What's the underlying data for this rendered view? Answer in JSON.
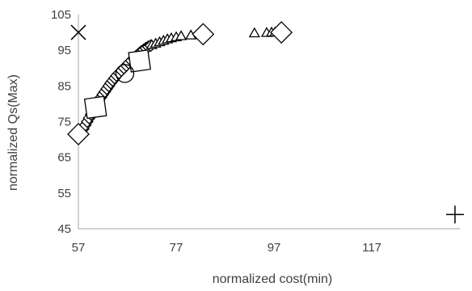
{
  "chart_data": {
    "type": "scatter",
    "xlabel": "normalized cost(min)",
    "ylabel": "normalized Qs(Max)",
    "xlim": [
      57,
      135
    ],
    "ylim": [
      45,
      105
    ],
    "x_ticks": [
      57,
      77,
      97,
      117
    ],
    "y_ticks": [
      45,
      55,
      65,
      75,
      85,
      95,
      105
    ],
    "grid": false,
    "legend": "none",
    "series": [
      {
        "marker": "diamond-small",
        "color": "#000000",
        "points": [
          [
            57.6,
            72
          ],
          [
            58,
            73
          ],
          [
            58.4,
            74
          ],
          [
            58.8,
            75
          ],
          [
            59.2,
            76
          ],
          [
            59.6,
            77
          ],
          [
            60,
            78
          ],
          [
            60.4,
            79
          ],
          [
            60.8,
            80
          ],
          [
            61.2,
            81
          ],
          [
            61.6,
            81.8
          ],
          [
            62,
            82.6
          ],
          [
            62.4,
            83.4
          ],
          [
            62.8,
            84.2
          ],
          [
            63.2,
            85
          ],
          [
            63.6,
            85.8
          ],
          [
            64,
            86.5
          ],
          [
            64.4,
            87.2
          ],
          [
            64.8,
            87.9
          ],
          [
            65.3,
            88.6
          ],
          [
            65.8,
            89.3
          ],
          [
            66.3,
            90
          ],
          [
            66.8,
            90.7
          ],
          [
            67.3,
            91.4
          ],
          [
            67.8,
            92.1
          ],
          [
            68.3,
            92.8
          ],
          [
            68.8,
            93.4
          ],
          [
            69.3,
            94
          ],
          [
            69.8,
            94.6
          ],
          [
            70.3,
            95.1
          ],
          [
            70.8,
            95.6
          ],
          [
            71.3,
            96
          ],
          [
            71.8,
            96.3
          ]
        ]
      },
      {
        "marker": "triangle",
        "color": "#000000",
        "points": [
          [
            72,
            96.5
          ],
          [
            72.8,
            96.9
          ],
          [
            73.6,
            97.3
          ],
          [
            74.4,
            97.7
          ],
          [
            75.2,
            98.1
          ],
          [
            76,
            98.4
          ],
          [
            77,
            98.7
          ],
          [
            78,
            99
          ],
          [
            80,
            99.2
          ],
          [
            93,
            99.8
          ],
          [
            95.5,
            99.9
          ],
          [
            96.5,
            100
          ],
          [
            97.2,
            100
          ]
        ]
      },
      {
        "marker": "square",
        "color": "#000000",
        "points": [
          [
            60.5,
            79
          ],
          [
            69.5,
            92
          ]
        ]
      },
      {
        "marker": "circle",
        "color": "#000000",
        "points": [
          [
            66.5,
            88.5
          ]
        ]
      },
      {
        "marker": "diamond",
        "color": "#000000",
        "points": [
          [
            82.5,
            99.5
          ],
          [
            98.5,
            100
          ]
        ]
      },
      {
        "marker": "diamond",
        "color": "#5a6b2f",
        "points": [
          [
            57,
            71.5
          ]
        ]
      },
      {
        "marker": "cross-x",
        "color": "#000000",
        "points": [
          [
            57,
            100
          ]
        ]
      },
      {
        "marker": "plus",
        "color": "#000000",
        "points": [
          [
            134,
            49
          ]
        ]
      }
    ]
  }
}
